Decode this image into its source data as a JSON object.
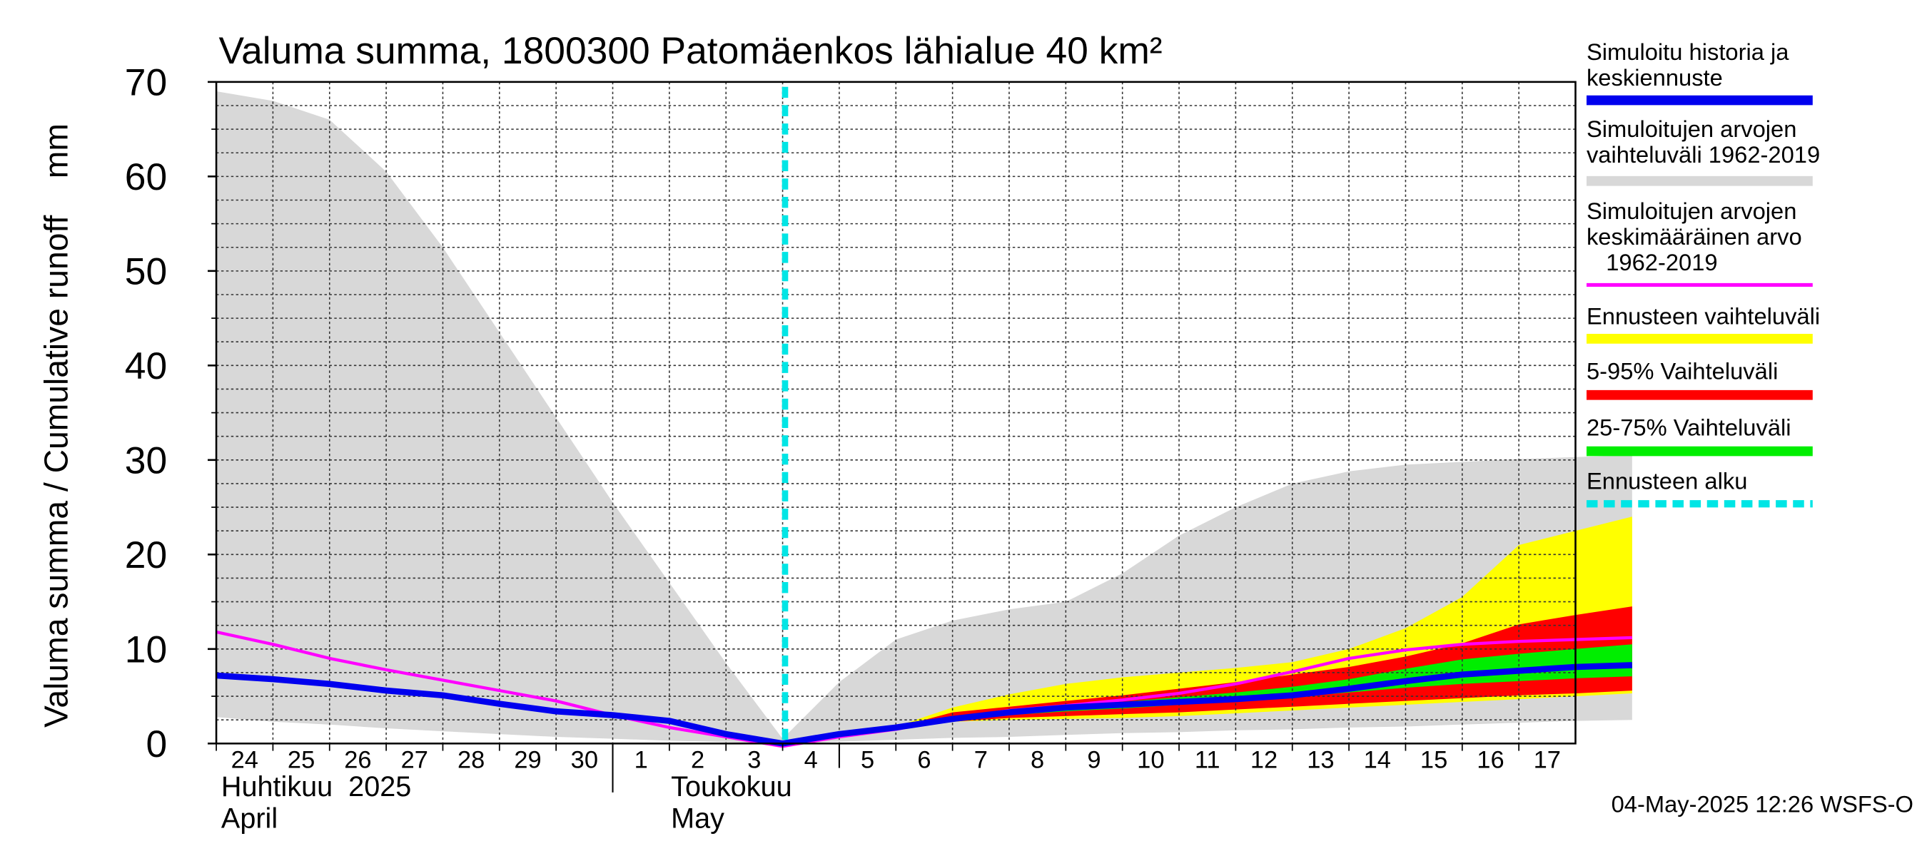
{
  "chart_data": {
    "type": "area",
    "title": "Valuma summa, 1800300 Patomäenkos lähialue 40 km²",
    "ylabel": "Valuma summa / Cumulative runoff    mm",
    "ylim": [
      0,
      70
    ],
    "y_ticks": [
      0,
      10,
      20,
      30,
      40,
      50,
      60,
      70
    ],
    "grid": true,
    "legend_position": "right",
    "x_tick_labels": [
      "24",
      "25",
      "26",
      "27",
      "28",
      "29",
      "30",
      "1",
      "2",
      "3",
      "4",
      "5",
      "6",
      "7",
      "8",
      "9",
      "10",
      "11",
      "12",
      "13",
      "14",
      "15",
      "16",
      "17"
    ],
    "month_labels": [
      {
        "line1": "Huhtikuu  2025",
        "line2": "April"
      },
      {
        "line1": "Toukokuu",
        "line2": "May"
      }
    ],
    "forecast_start": "2025-05-04",
    "footer": "04-May-2025 12:26 WSFS-O",
    "colors": {
      "history": "#0000ee",
      "range_hist": "#d8d8d8",
      "mean_hist": "#ff00ff",
      "forecast_range": "#ffff00",
      "p5_95": "#ff0000",
      "p25_75": "#00ee00",
      "forecast_start": "#00e5e5"
    },
    "x_days": [
      0,
      1,
      2,
      3,
      4,
      5,
      6,
      7,
      8,
      9,
      10,
      11,
      12,
      13,
      14,
      15,
      16,
      17,
      18,
      19,
      20,
      21,
      22,
      23,
      24,
      25
    ],
    "hist_range": {
      "upper": [
        69,
        68,
        66,
        60.5,
        52.5,
        43.5,
        34.5,
        25.5,
        17,
        8.5,
        0.5,
        6.5,
        11,
        13,
        14.2,
        15,
        18,
        22,
        25,
        27.5,
        28.8,
        29.5,
        29.8,
        30.1,
        30.3,
        30.5
      ],
      "lower": [
        2.8,
        2.3,
        2,
        1.6,
        1.3,
        1,
        0.7,
        0.5,
        0.3,
        0.15,
        0,
        0.2,
        0.4,
        0.6,
        0.7,
        0.9,
        1.1,
        1.2,
        1.4,
        1.5,
        1.7,
        1.8,
        2,
        2.2,
        2.4,
        2.5
      ]
    },
    "series": [
      {
        "name": "Simuloitu historia ja keskiennuste",
        "x": [
          0,
          1,
          2,
          3,
          4,
          5,
          6,
          7,
          8,
          9,
          10,
          11,
          12,
          13,
          14,
          15,
          16,
          17,
          18,
          19,
          20,
          21,
          22,
          23,
          24,
          25
        ],
        "values": [
          7.2,
          6.8,
          6.3,
          5.6,
          5.1,
          4.2,
          3.4,
          3.0,
          2.4,
          1.0,
          0,
          1.0,
          1.7,
          2.6,
          3.3,
          3.8,
          4.1,
          4.4,
          4.7,
          5.1,
          5.8,
          6.6,
          7.3,
          7.7,
          8.1,
          8.3
        ]
      },
      {
        "name": "Simuloitujen arvojen keskimääräinen arvo 1962-2019",
        "x": [
          0,
          1,
          2,
          3,
          4,
          5,
          6,
          7,
          8,
          9,
          10,
          11,
          12,
          13,
          14,
          15,
          16,
          17,
          18,
          19,
          20,
          21,
          22,
          23,
          24,
          25
        ],
        "values": [
          11.8,
          10.5,
          9.0,
          7.8,
          6.7,
          5.6,
          4.5,
          3.0,
          1.7,
          0.7,
          -0.3,
          0.7,
          1.5,
          2.6,
          3.5,
          4.0,
          4.6,
          5.3,
          6.3,
          7.6,
          9.0,
          9.9,
          10.5,
          10.8,
          11.0,
          11.2
        ]
      }
    ],
    "forecast_bands": {
      "x": [
        10,
        11,
        12,
        13,
        14,
        15,
        16,
        17,
        18,
        19,
        20,
        21,
        22,
        23,
        24,
        25
      ],
      "full_upper": [
        0,
        1.0,
        1.8,
        3.8,
        5.2,
        6.3,
        7.0,
        7.5,
        8.0,
        8.6,
        10.0,
        12.2,
        15.5,
        21.0,
        22.5,
        24.0
      ],
      "full_lower": [
        0,
        0.9,
        1.5,
        2.3,
        2.5,
        2.6,
        2.7,
        2.9,
        3.2,
        3.5,
        3.8,
        4.1,
        4.4,
        4.7,
        5.0,
        5.3
      ],
      "p95": [
        0,
        1.0,
        1.7,
        3.3,
        3.9,
        4.5,
        5.1,
        5.8,
        6.5,
        7.3,
        8.1,
        9.2,
        10.6,
        12.6,
        13.6,
        14.5
      ],
      "p75": [
        0,
        1.0,
        1.7,
        2.8,
        3.5,
        4.0,
        4.4,
        4.9,
        5.4,
        6.0,
        6.8,
        7.9,
        8.9,
        9.5,
        10.0,
        10.5
      ],
      "p25": [
        0,
        0.95,
        1.6,
        2.5,
        3.0,
        3.4,
        3.7,
        4.1,
        4.5,
        4.9,
        5.4,
        5.9,
        6.3,
        6.6,
        6.9,
        7.1
      ],
      "p5": [
        0,
        0.9,
        1.5,
        2.3,
        2.7,
        2.9,
        3.1,
        3.3,
        3.6,
        3.9,
        4.2,
        4.5,
        4.8,
        5.1,
        5.3,
        5.6
      ]
    },
    "legend": [
      {
        "text": [
          "Simuloitu historia ja",
          "keskiennuste"
        ],
        "color": "#0000ee",
        "style": "solid"
      },
      {
        "text": [
          "Simuloitujen arvojen",
          "vaihteluväli 1962-2019"
        ],
        "color": "#d8d8d8",
        "style": "solid"
      },
      {
        "text": [
          "Simuloitujen arvojen",
          "keskimääräinen arvo",
          "   1962-2019"
        ],
        "color": "#ff00ff",
        "style": "thin"
      },
      {
        "text": [
          "Ennusteen vaihteluväli"
        ],
        "color": "#ffff00",
        "style": "solid"
      },
      {
        "text": [
          "5-95% Vaihteluväli"
        ],
        "color": "#ff0000",
        "style": "solid"
      },
      {
        "text": [
          "25-75% Vaihteluväli"
        ],
        "color": "#00ee00",
        "style": "solid"
      },
      {
        "text": [
          "Ennusteen alku"
        ],
        "color": "#00e5e5",
        "style": "dashed"
      }
    ]
  }
}
